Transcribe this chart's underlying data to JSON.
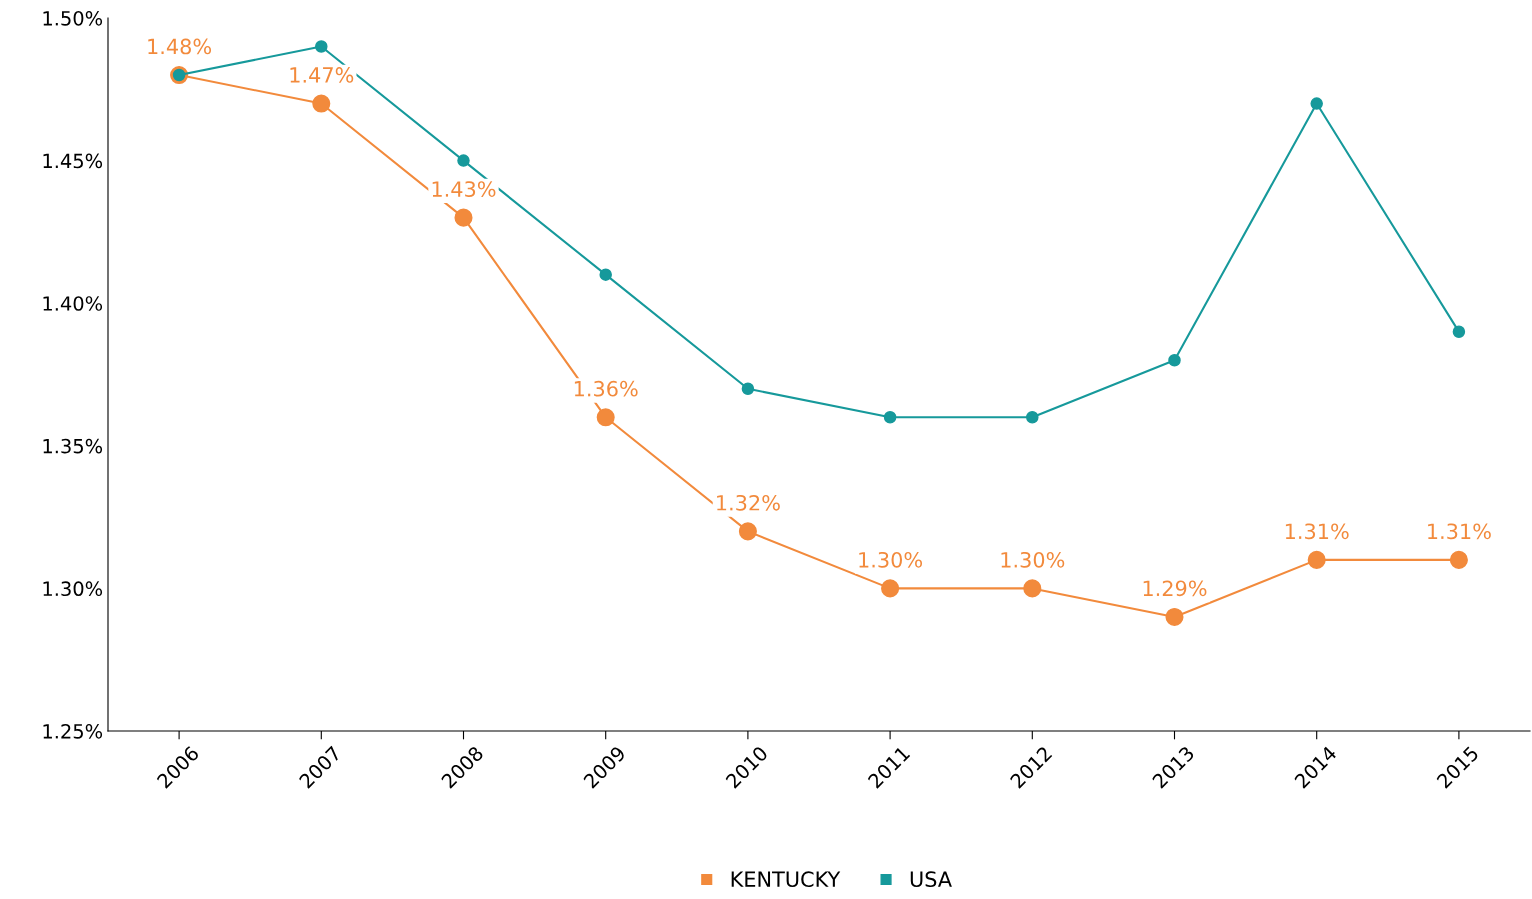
{
  "chart_data": {
    "type": "line",
    "categories": [
      "2006",
      "2007",
      "2008",
      "2009",
      "2010",
      "2011",
      "2012",
      "2013",
      "2014",
      "2015"
    ],
    "series": [
      {
        "name": "KENTUCKY",
        "color": "#f28a3c",
        "marker": "circle",
        "values": [
          1.48,
          1.47,
          1.43,
          1.36,
          1.32,
          1.3,
          1.3,
          1.29,
          1.31,
          1.31
        ],
        "value_labels": [
          "1.48%",
          "1.47%",
          "1.43%",
          "1.36%",
          "1.32%",
          "1.30%",
          "1.30%",
          "1.29%",
          "1.31%",
          "1.31%"
        ]
      },
      {
        "name": "USA",
        "color": "#16999b",
        "marker": "circle",
        "values": [
          1.48,
          1.49,
          1.45,
          1.41,
          1.37,
          1.36,
          1.36,
          1.38,
          1.47,
          1.39
        ]
      }
    ],
    "ylim": [
      1.25,
      1.5
    ],
    "yticks": [
      {
        "value": 1.25,
        "label": "1.25%"
      },
      {
        "value": 1.3,
        "label": "1.30%"
      },
      {
        "value": 1.35,
        "label": "1.35%"
      },
      {
        "value": 1.4,
        "label": "1.40%"
      },
      {
        "value": 1.45,
        "label": "1.45%"
      },
      {
        "value": 1.5,
        "label": "1.50%"
      }
    ],
    "grid": false,
    "legend": "bottom",
    "line_style": "solid"
  }
}
